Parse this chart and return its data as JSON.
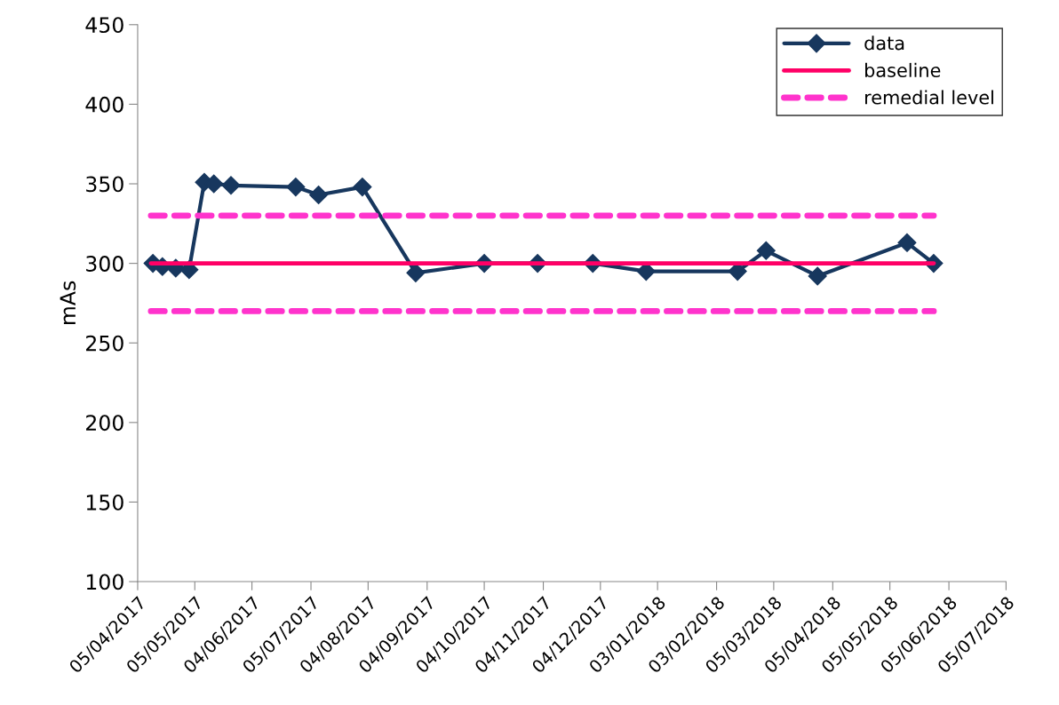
{
  "chart_data": {
    "type": "line",
    "ylabel": "mAs",
    "xlim": [
      "2017-04-05",
      "2018-07-05"
    ],
    "xticks": [
      {
        "value": "2017-04-05",
        "label": "05/04/2017"
      },
      {
        "value": "2017-05-05",
        "label": "05/05/2017"
      },
      {
        "value": "2017-06-04",
        "label": "04/06/2017"
      },
      {
        "value": "2017-07-05",
        "label": "05/07/2017"
      },
      {
        "value": "2017-08-04",
        "label": "04/08/2017"
      },
      {
        "value": "2017-09-04",
        "label": "04/09/2017"
      },
      {
        "value": "2017-10-04",
        "label": "04/10/2017"
      },
      {
        "value": "2017-11-04",
        "label": "04/11/2017"
      },
      {
        "value": "2017-12-04",
        "label": "04/12/2017"
      },
      {
        "value": "2018-01-03",
        "label": "03/01/2018"
      },
      {
        "value": "2018-02-03",
        "label": "03/02/2018"
      },
      {
        "value": "2018-03-05",
        "label": "05/03/2018"
      },
      {
        "value": "2018-04-05",
        "label": "05/04/2018"
      },
      {
        "value": "2018-05-05",
        "label": "05/05/2018"
      },
      {
        "value": "2018-06-05",
        "label": "05/06/2018"
      },
      {
        "value": "2018-07-05",
        "label": "05/07/2018"
      }
    ],
    "ylim": [
      100,
      450
    ],
    "yticks": [
      100,
      150,
      200,
      250,
      300,
      350,
      400,
      450
    ],
    "grid": false,
    "legend": "top right",
    "series": [
      {
        "name": "data",
        "color": "#17375e",
        "marker": "diamond",
        "line_style": "solid",
        "x": [
          "2017-04-13",
          "2017-04-18",
          "2017-04-25",
          "2017-05-02",
          "2017-05-10",
          "2017-05-15",
          "2017-05-24",
          "2017-06-27",
          "2017-07-09",
          "2017-08-01",
          "2017-08-29",
          "2017-10-04",
          "2017-11-01",
          "2017-11-30",
          "2017-12-28",
          "2018-02-14",
          "2018-03-01",
          "2018-03-28",
          "2018-05-14",
          "2018-05-28"
        ],
        "values": [
          300,
          298,
          297,
          296,
          351,
          350,
          349,
          348,
          343,
          348,
          294,
          300,
          300,
          300,
          295,
          295,
          308,
          292,
          313,
          300
        ]
      },
      {
        "name": "baseline",
        "color": "#ff0066",
        "marker": "none",
        "line_style": "solid",
        "x": [
          "2017-04-12",
          "2018-05-28"
        ],
        "values": [
          300,
          300
        ]
      },
      {
        "name": "remedial level",
        "color": "#ff33cc",
        "marker": "none",
        "line_style": "dashed",
        "x": [
          "2017-04-12",
          "2018-05-28"
        ],
        "values": [
          330,
          330
        ]
      },
      {
        "color": "#ff33cc",
        "marker": "none",
        "line_style": "dashed",
        "x": [
          "2017-04-12",
          "2018-05-28"
        ],
        "values": [
          270,
          270
        ]
      }
    ]
  }
}
